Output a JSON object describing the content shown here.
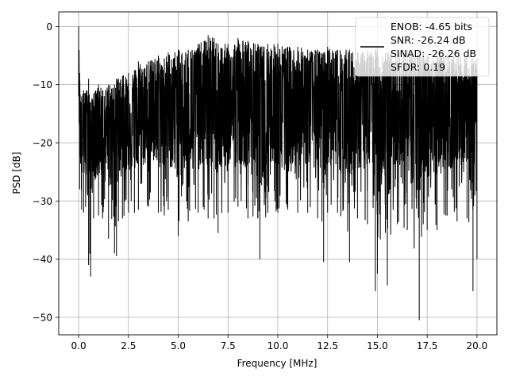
{
  "chart_data": {
    "type": "line",
    "title": "",
    "xlabel": "Frequency [MHz]",
    "ylabel": "PSD [dB]",
    "xlim": [
      -1.0,
      21.0
    ],
    "ylim": [
      -53.0,
      2.5
    ],
    "xticks": [
      0.0,
      2.5,
      5.0,
      7.5,
      10.0,
      12.5,
      15.0,
      17.5,
      20.0
    ],
    "xtick_labels": [
      "0.0",
      "2.5",
      "5.0",
      "7.5",
      "10.0",
      "12.5",
      "15.0",
      "17.5",
      "20.0"
    ],
    "yticks": [
      0,
      -10,
      -20,
      -30,
      -40,
      -50
    ],
    "ytick_labels": [
      "0",
      "−10",
      "−20",
      "−30",
      "−40",
      "−50"
    ],
    "grid": true,
    "legend": {
      "placement": "top-right",
      "entries": [
        "ENOB: -4.65 bits",
        "SNR: -26.24 dB",
        "SINAD: -26.26 dB",
        "SFDR: 0.19"
      ]
    },
    "series": [
      {
        "color": "#000000",
        "style": "noise-floor spectrum, dense trace from 0 to 20 MHz",
        "x": [
          0.0,
          0.05,
          0.15,
          0.25,
          0.35,
          0.5,
          0.6,
          0.75,
          1.0,
          1.2,
          1.5,
          1.8,
          1.9,
          2.0,
          2.2,
          2.5,
          2.8,
          3.0,
          3.5,
          4.0,
          4.3,
          4.5,
          5.0,
          5.5,
          6.0,
          6.3,
          6.5,
          6.8,
          7.0,
          7.5,
          8.0,
          8.5,
          9.0,
          9.1,
          9.5,
          10.0,
          10.5,
          11.0,
          11.5,
          12.0,
          12.3,
          12.5,
          13.0,
          13.6,
          14.0,
          14.5,
          14.9,
          15.0,
          15.4,
          15.5,
          16.0,
          16.5,
          17.1,
          17.3,
          17.5,
          18.0,
          18.5,
          19.0,
          19.5,
          19.8,
          20.0
        ],
        "y_max": [
          0.0,
          -8.0,
          -12.0,
          -11.0,
          -11.5,
          -9.0,
          -13.0,
          -11.5,
          -10.0,
          -11.0,
          -10.0,
          -10.0,
          -9.0,
          -9.0,
          -8.5,
          -8.0,
          -7.5,
          -6.0,
          -6.0,
          -5.0,
          -5.5,
          -4.5,
          -4.0,
          -4.0,
          -3.0,
          -2.5,
          -1.5,
          -2.0,
          -3.0,
          -3.0,
          -2.0,
          -2.5,
          -3.0,
          -3.5,
          -3.0,
          -3.0,
          -3.5,
          -3.5,
          -4.0,
          -4.0,
          -4.5,
          -3.5,
          -4.0,
          -4.0,
          -4.5,
          -4.0,
          -4.0,
          -3.5,
          -4.5,
          -4.5,
          -4.0,
          -4.0,
          -4.5,
          -4.5,
          -5.0,
          -5.0,
          -5.0,
          -5.0,
          -5.0,
          -5.5,
          -5.5
        ],
        "y_min": [
          -12.0,
          -28.0,
          -31.5,
          -32.0,
          -31.0,
          -41.0,
          -43.0,
          -33.0,
          -32.5,
          -33.0,
          -36.5,
          -39.0,
          -39.5,
          -33.5,
          -33.0,
          -32.0,
          -32.0,
          -31.5,
          -31.0,
          -32.0,
          -32.5,
          -31.5,
          -36.0,
          -33.5,
          -32.0,
          -31.5,
          -33.0,
          -33.0,
          -35.5,
          -32.0,
          -31.0,
          -33.0,
          -33.0,
          -40.0,
          -32.0,
          -32.0,
          -31.5,
          -32.0,
          -32.0,
          -33.0,
          -40.5,
          -32.0,
          -32.0,
          -40.5,
          -33.0,
          -34.0,
          -45.5,
          -42.5,
          -35.5,
          -44.5,
          -34.0,
          -35.0,
          -50.5,
          -34.0,
          -35.0,
          -35.0,
          -32.5,
          -33.5,
          -33.0,
          -45.5,
          -40.0
        ],
        "y_mean": [
          -5.0,
          -16.0,
          -19.0,
          -19.0,
          -18.5,
          -18.0,
          -18.5,
          -18.0,
          -17.5,
          -17.5,
          -17.0,
          -17.0,
          -17.0,
          -17.0,
          -16.5,
          -16.0,
          -16.0,
          -15.5,
          -15.0,
          -15.0,
          -15.0,
          -14.5,
          -14.5,
          -14.0,
          -14.0,
          -14.0,
          -14.0,
          -14.0,
          -14.0,
          -14.0,
          -14.0,
          -14.0,
          -14.0,
          -14.0,
          -14.0,
          -14.0,
          -14.0,
          -14.0,
          -14.0,
          -14.0,
          -14.0,
          -14.0,
          -14.0,
          -14.0,
          -14.0,
          -14.0,
          -14.0,
          -14.0,
          -14.0,
          -14.0,
          -14.5,
          -14.5,
          -14.5,
          -14.5,
          -14.5,
          -14.5,
          -14.5,
          -15.0,
          -15.0,
          -15.0,
          -15.0
        ]
      }
    ]
  }
}
